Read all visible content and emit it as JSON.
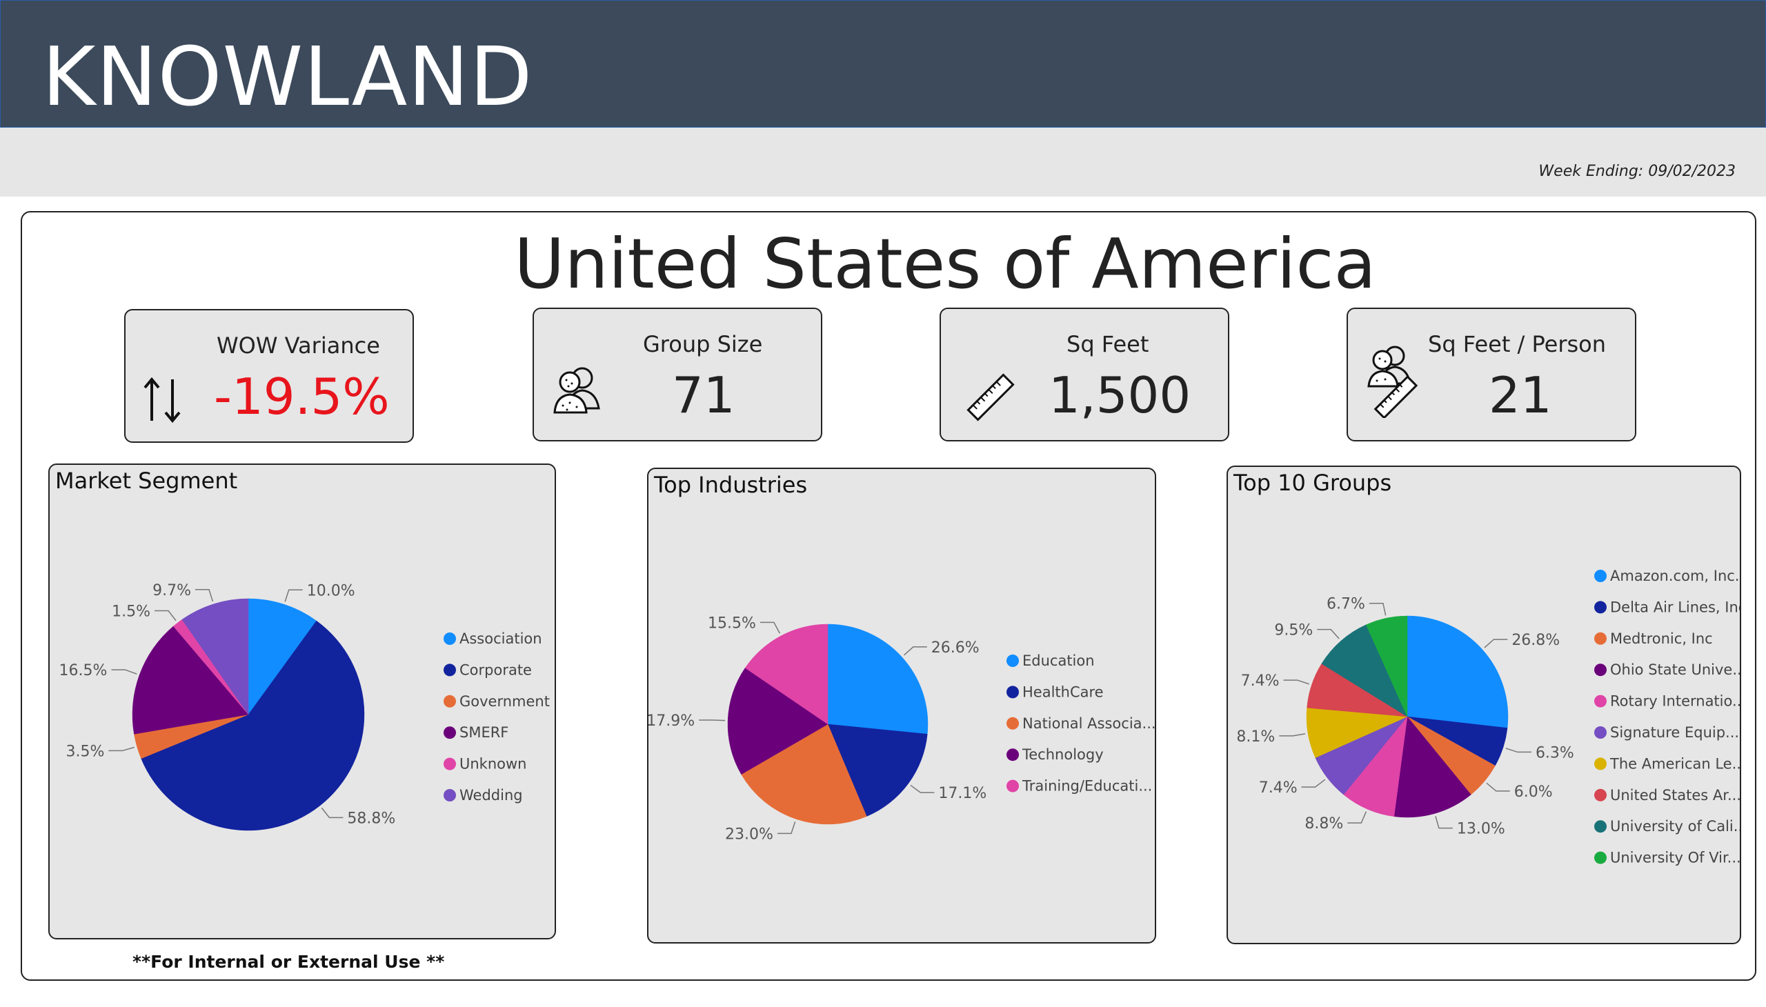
{
  "brand": "KNOWLAND",
  "week_ending": "Week Ending: 09/02/2023",
  "country": "United States of America",
  "kpis": {
    "wow": {
      "label": "WOW Variance",
      "value": "-19.5%",
      "icon": "up-down-arrows-icon",
      "value_color": "#e8141c"
    },
    "group_size": {
      "label": "Group Size",
      "value": "71",
      "icon": "people-icon"
    },
    "sq_feet": {
      "label": "Sq Feet",
      "value": "1,500",
      "icon": "ruler-icon"
    },
    "sq_per_person": {
      "label": "Sq Feet / Person",
      "value": "21",
      "icon": "people-ruler-icon"
    }
  },
  "footnote": "**For Internal or External Use **",
  "chart_data": [
    {
      "type": "pie",
      "title": "Market Segment",
      "categories": [
        "Association",
        "Corporate",
        "Government",
        "SMERF",
        "Unknown",
        "Wedding"
      ],
      "values": [
        10.0,
        58.8,
        3.5,
        16.5,
        1.5,
        9.7
      ],
      "labels": [
        "10.0%",
        "58.8%",
        "3.5%",
        "16.5%",
        "1.5%",
        "9.7%"
      ],
      "colors": [
        "#118dff",
        "#12239e",
        "#e66c37",
        "#6b007b",
        "#e044a7",
        "#744ec2"
      ],
      "legend": "right"
    },
    {
      "type": "pie",
      "title": "Top Industries",
      "categories": [
        "Education",
        "HealthCare",
        "National Associa...",
        "Technology",
        "Training/Educati..."
      ],
      "values": [
        26.6,
        17.1,
        23.0,
        17.9,
        15.5
      ],
      "labels": [
        "26.6%",
        "17.1%",
        "23.0%",
        "17.9%",
        "15.5%"
      ],
      "colors": [
        "#118dff",
        "#12239e",
        "#e66c37",
        "#6b007b",
        "#e044a7"
      ],
      "legend": "right"
    },
    {
      "type": "pie",
      "title": "Top 10 Groups",
      "categories": [
        "Amazon.com, Inc.",
        "Delta Air Lines, Inc",
        "Medtronic, Inc",
        "Ohio State Unive...",
        "Rotary Internatio...",
        "Signature Equip...",
        "The American Le...",
        "United States Ar...",
        "University of Cali...",
        "University Of Vir..."
      ],
      "values": [
        26.8,
        6.3,
        6.0,
        13.0,
        8.8,
        7.4,
        8.1,
        7.4,
        9.5,
        6.7
      ],
      "labels": [
        "26.8%",
        "6.3%",
        "6.0%",
        "13.0%",
        "8.8%",
        "7.4%",
        "8.1%",
        "7.4%",
        "9.5%",
        "6.7%"
      ],
      "colors": [
        "#118dff",
        "#12239e",
        "#e66c37",
        "#6b007b",
        "#e044a7",
        "#744ec2",
        "#d9b300",
        "#d64550",
        "#197278",
        "#1aab40"
      ],
      "legend": "right"
    }
  ]
}
